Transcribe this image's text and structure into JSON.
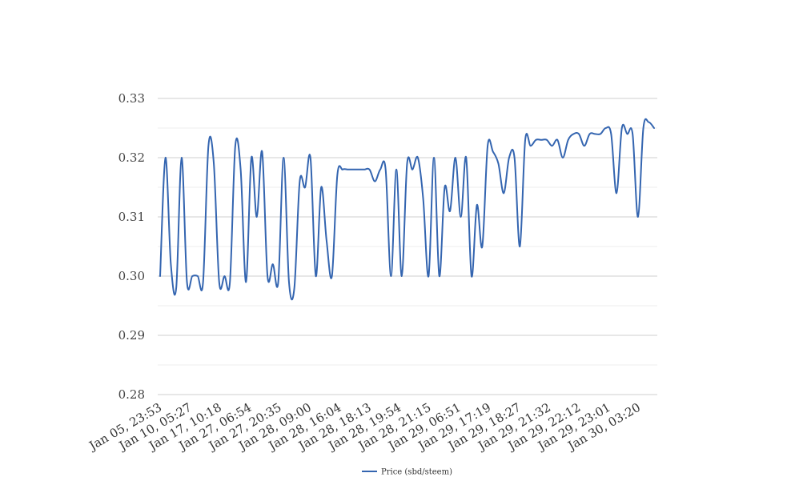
{
  "chart_data": {
    "type": "line",
    "title": "",
    "xlabel": "",
    "ylabel": "",
    "ylim": [
      0.28,
      0.33
    ],
    "yticks": [
      "0.28",
      "0.29",
      "0.30",
      "0.31",
      "0.32",
      "0.33"
    ],
    "grid": true,
    "legend_position": "bottom",
    "x_tick_labels": [
      "Jan 05, 23:53",
      "Jan 10, 05:27",
      "Jan 17, 10:18",
      "Jan 27, 06:54",
      "Jan 27, 20:35",
      "Jan 28, 09:00",
      "Jan 28, 16:04",
      "Jan 28, 18:13",
      "Jan 28, 19:54",
      "Jan 28, 21:15",
      "Jan 29, 06:51",
      "Jan 29, 17:19",
      "Jan 29, 18:27",
      "Jan 29, 21:32",
      "Jan 29, 22:12",
      "Jan 29, 23:01",
      "Jan 30, 03:20"
    ],
    "series": [
      {
        "name": "Price (sbd/steem)",
        "color": "#3465b0",
        "values": [
          0.3,
          0.32,
          0.302,
          0.298,
          0.32,
          0.299,
          0.3,
          0.3,
          0.299,
          0.322,
          0.319,
          0.299,
          0.3,
          0.299,
          0.322,
          0.318,
          0.299,
          0.32,
          0.31,
          0.321,
          0.3,
          0.302,
          0.299,
          0.32,
          0.299,
          0.298,
          0.316,
          0.315,
          0.32,
          0.3,
          0.315,
          0.306,
          0.3,
          0.317,
          0.318,
          0.318,
          0.318,
          0.318,
          0.318,
          0.318,
          0.316,
          0.318,
          0.318,
          0.3,
          0.318,
          0.3,
          0.319,
          0.318,
          0.32,
          0.313,
          0.3,
          0.32,
          0.3,
          0.315,
          0.311,
          0.32,
          0.31,
          0.32,
          0.3,
          0.312,
          0.305,
          0.322,
          0.321,
          0.319,
          0.314,
          0.32,
          0.32,
          0.305,
          0.323,
          0.322,
          0.323,
          0.323,
          0.323,
          0.322,
          0.323,
          0.32,
          0.323,
          0.324,
          0.324,
          0.322,
          0.324,
          0.324,
          0.324,
          0.325,
          0.324,
          0.314,
          0.325,
          0.324,
          0.324,
          0.31,
          0.325,
          0.326,
          0.325
        ]
      }
    ]
  }
}
